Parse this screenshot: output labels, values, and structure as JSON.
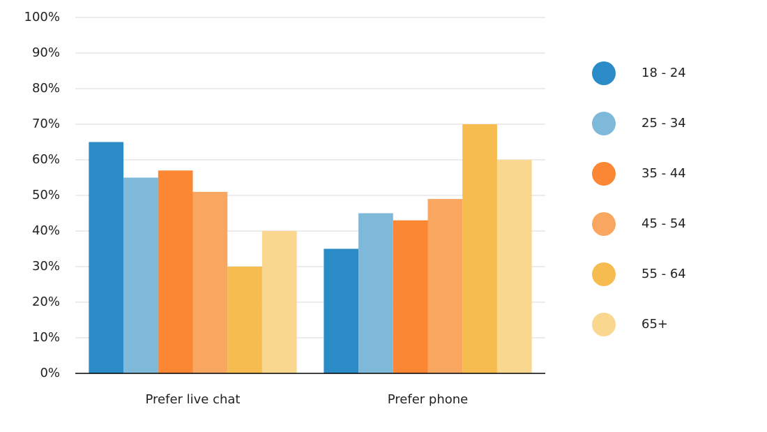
{
  "chart_data": {
    "type": "bar",
    "categories": [
      "Prefer live chat",
      "Prefer phone"
    ],
    "series": [
      {
        "name": "18 - 24",
        "color": "#2b8bc6",
        "values": [
          65,
          35
        ]
      },
      {
        "name": "25 - 34",
        "color": "#7fb9da",
        "values": [
          55,
          45
        ]
      },
      {
        "name": "35 - 44",
        "color": "#fb8734",
        "values": [
          57,
          43
        ]
      },
      {
        "name": "45 - 54",
        "color": "#f9a660",
        "values": [
          51,
          49
        ]
      },
      {
        "name": "55 - 64",
        "color": "#f6bc4f",
        "values": [
          30,
          70
        ]
      },
      {
        "name": "65+",
        "color": "#f9d78f",
        "values": [
          40,
          60
        ]
      }
    ],
    "ylim": [
      0,
      100
    ],
    "yticks": [
      {
        "value": 0,
        "label": "0%"
      },
      {
        "value": 10,
        "label": "10%"
      },
      {
        "value": 20,
        "label": "20%"
      },
      {
        "value": 30,
        "label": "30%"
      },
      {
        "value": 40,
        "label": "40%"
      },
      {
        "value": 50,
        "label": "50%"
      },
      {
        "value": 60,
        "label": "60%"
      },
      {
        "value": 70,
        "label": "70%"
      },
      {
        "value": 80,
        "label": "80%"
      },
      {
        "value": 90,
        "label": "90%"
      },
      {
        "value": 100,
        "label": "100%"
      }
    ],
    "grid": true,
    "legend": "right"
  }
}
